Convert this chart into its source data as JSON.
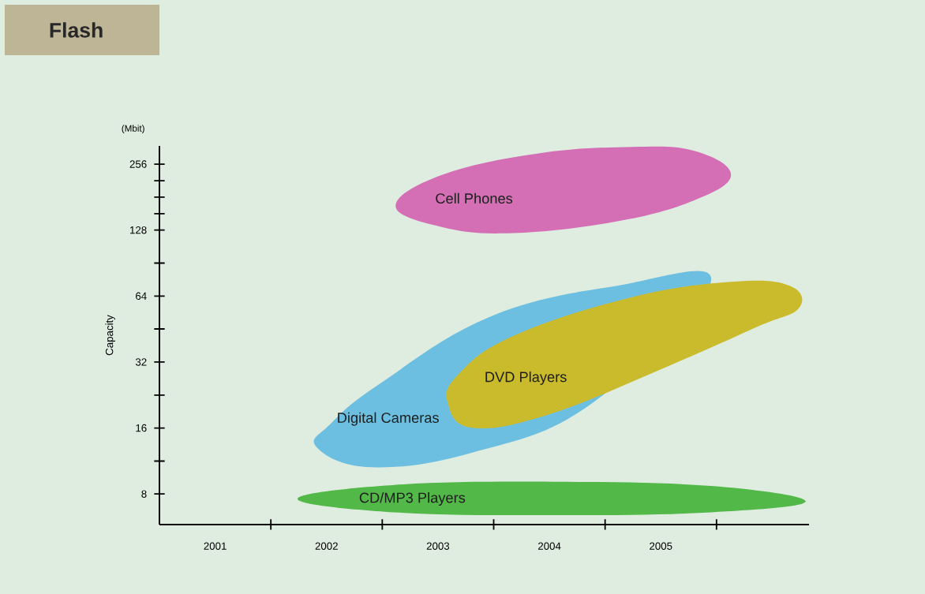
{
  "chart_data": {
    "type": "area",
    "title": "Flash",
    "ylabel": "Capacity",
    "log": "y",
    "xlim": [
      2000.5,
      2006.33
    ],
    "ylim": [
      5.8,
      310
    ],
    "xticks": [
      2001,
      2002,
      2003,
      2004,
      2005,
      {
        "value": 2001.5,
        "label": null
      },
      {
        "value": 2002.5,
        "label": null
      },
      {
        "value": 2003.5,
        "label": null
      },
      {
        "value": 2004.5,
        "label": null
      },
      {
        "value": 2005.5,
        "label": null
      }
    ],
    "yticks": [
      8,
      16,
      32,
      64,
      128,
      256,
      {
        "value": 11.3,
        "label": null
      },
      {
        "value": 22.6,
        "label": null
      },
      {
        "value": 45.3,
        "label": null
      },
      {
        "value": 90.5,
        "label": null
      },
      {
        "value": 152,
        "label": null
      },
      {
        "value": 181,
        "label": null
      },
      {
        "value": 215,
        "label": null
      }
    ],
    "series": [
      {
        "name": "Cell Phones",
        "color": "#d46fb6",
        "x": [
          2002.62,
          2003.04,
          2003.67,
          2004.6,
          2005.3,
          2005.63,
          2005.3,
          2004.74,
          2003.89,
          2003.04
        ],
        "values": [
          165,
          132,
          124,
          140,
          175,
          229,
          294,
          307,
          286,
          229
        ]
      },
      {
        "name": "Digital Cameras",
        "color": "#6cbfe0",
        "x": [
          2001.91,
          2002.4,
          2003.32,
          2004.38,
          2005.45,
          2004.6,
          2003.46,
          2002.47,
          2002.04
        ],
        "values": [
          13.1,
          10.6,
          12.4,
          20.7,
          74.5,
          71.2,
          51.3,
          25.3,
          16.8
        ]
      },
      {
        "name": "DVD Players",
        "color": "#cabb2c",
        "x": [
          2003.09,
          2003.32,
          2004.03,
          2005.09,
          2005.87,
          2006.24,
          2006.16,
          2005.66,
          2004.74,
          2003.67,
          2003.18
        ],
        "values": [
          20.7,
          16,
          18.7,
          31,
          46.4,
          56.4,
          71.2,
          74.5,
          63.3,
          42,
          28
        ]
      },
      {
        "name": "CD/MP3 Players",
        "color": "#52b848",
        "x": [
          2001.74,
          2002.61,
          2004.03,
          2005.45,
          2006.3,
          2005.45,
          2004.03,
          2002.61
        ],
        "values": [
          7.6,
          6.6,
          6.4,
          6.6,
          7.4,
          8.7,
          9.1,
          8.8
        ]
      }
    ],
    "annotations": [
      "(Mbit)"
    ]
  }
}
